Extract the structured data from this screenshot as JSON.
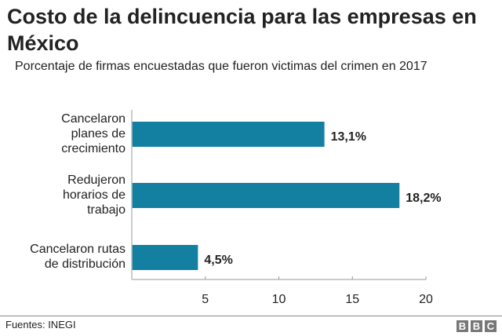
{
  "chart_data": {
    "type": "bar",
    "orientation": "horizontal",
    "title": "Costo de la delincuencia para las empresas en México",
    "subtitle": "Porcentaje de firmas encuestadas que fueron victimas del crimen en 2017",
    "categories": [
      [
        "Cancelaron",
        "planes de",
        "crecimiento"
      ],
      [
        "Redujeron",
        "horarios de",
        "trabajo"
      ],
      [
        "Cancelaron rutas",
        "de distribución"
      ]
    ],
    "values": [
      13.1,
      18.2,
      4.5
    ],
    "value_labels": [
      "13,1%",
      "18,2%",
      "4,5%"
    ],
    "xlim": [
      0,
      20
    ],
    "xticks": [
      5,
      10,
      15,
      20
    ],
    "bar_color": "#1380a1",
    "grid": false
  },
  "footer": {
    "source": "Fuentes: INEGI",
    "logo": [
      "B",
      "B",
      "C"
    ]
  }
}
